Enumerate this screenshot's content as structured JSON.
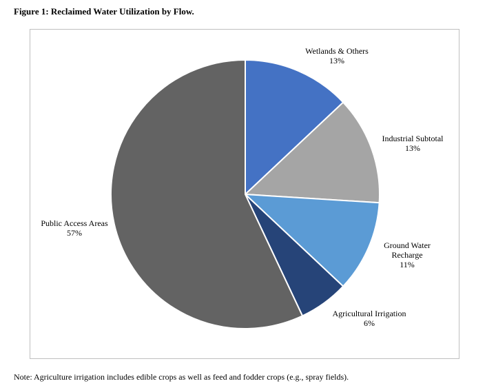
{
  "figure": {
    "title": "Figure 1: Reclaimed Water Utilization by Flow.",
    "note": "Note: Agriculture irrigation includes edible crops as well as feed and fodder crops (e.g., spray fields)."
  },
  "chart_data": {
    "type": "pie",
    "title": "",
    "slices": [
      {
        "label": "Wetlands & Others",
        "value": 13,
        "value_label": "13%",
        "color": "#4472c4"
      },
      {
        "label": "Industrial Subtotal",
        "value": 13,
        "value_label": "13%",
        "color": "#a5a5a5"
      },
      {
        "label": "Ground Water Recharge",
        "value": 11,
        "value_label": "11%",
        "color": "#5b9bd5"
      },
      {
        "label": "Agricultural Irrigation",
        "value": 6,
        "value_label": "6%",
        "color": "#264478"
      },
      {
        "label": "Public Access Areas",
        "value": 57,
        "value_label": "57%",
        "color": "#636363"
      }
    ],
    "start_angle": "12 o'clock",
    "direction": "clockwise",
    "legend": "none"
  }
}
